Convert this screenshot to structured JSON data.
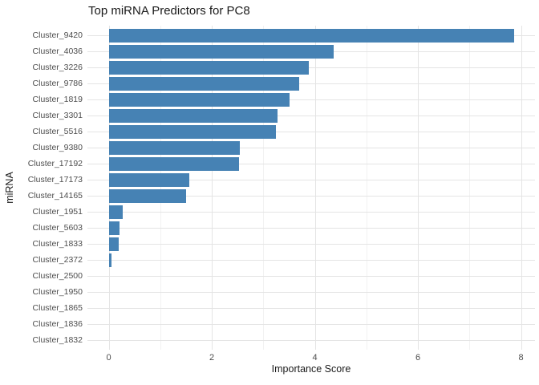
{
  "chart_data": {
    "type": "bar",
    "orientation": "horizontal",
    "title": "Top miRNA Predictors for PC8",
    "xlabel": "Importance Score",
    "ylabel": "miRNA",
    "categories": [
      "Cluster_9420",
      "Cluster_4036",
      "Cluster_3226",
      "Cluster_9786",
      "Cluster_1819",
      "Cluster_3301",
      "Cluster_5516",
      "Cluster_9380",
      "Cluster_17192",
      "Cluster_17173",
      "Cluster_14165",
      "Cluster_1951",
      "Cluster_5603",
      "Cluster_1833",
      "Cluster_2372",
      "Cluster_2500",
      "Cluster_1950",
      "Cluster_1865",
      "Cluster_1836",
      "Cluster_1832"
    ],
    "values": [
      7.86,
      4.36,
      3.88,
      3.7,
      3.51,
      3.27,
      3.25,
      2.54,
      2.53,
      1.56,
      1.5,
      0.28,
      0.21,
      0.19,
      0.05,
      0,
      0,
      0,
      0,
      0
    ],
    "xlim": [
      -0.41,
      8.27
    ],
    "x_ticks": [
      0,
      2,
      4,
      6,
      8
    ],
    "x_minor_ticks": [
      1,
      3,
      5,
      7
    ],
    "grid": true,
    "legend": false,
    "bar_color": "#4682B4",
    "major_grid_color": "#e4e4e4",
    "minor_grid_color": "#f2f2f2",
    "axis_text_color": "#4d4d4d"
  }
}
